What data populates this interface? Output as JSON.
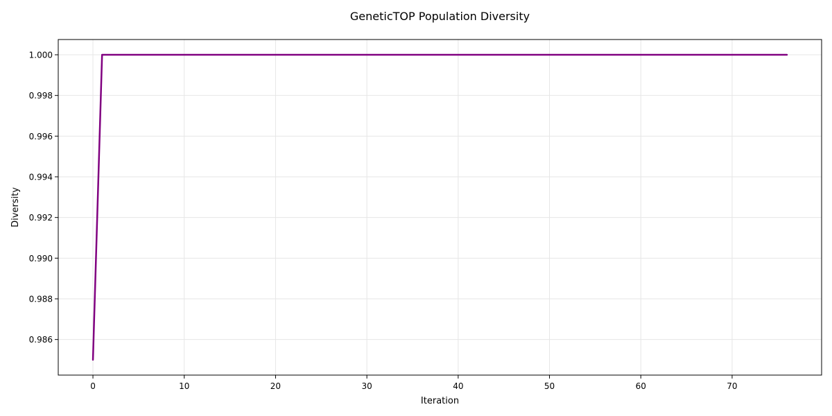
{
  "chart_data": {
    "type": "line",
    "title": "GeneticTOP Population Diversity",
    "xlabel": "Iteration",
    "ylabel": "Diversity",
    "xlim": [
      -3.8,
      79.8
    ],
    "ylim": [
      0.98425,
      1.00075
    ],
    "x_ticks": [
      0,
      10,
      20,
      30,
      40,
      50,
      60,
      70
    ],
    "y_ticks": [
      0.986,
      0.988,
      0.99,
      0.992,
      0.994,
      0.996,
      0.998,
      1.0
    ],
    "y_tick_labels": [
      "0.986",
      "0.988",
      "0.990",
      "0.992",
      "0.994",
      "0.996",
      "0.998",
      "1.000"
    ],
    "grid": true,
    "series": [
      {
        "color": "#800080",
        "x": [
          0,
          1,
          76
        ],
        "y": [
          0.985,
          1.0,
          1.0
        ]
      }
    ]
  }
}
